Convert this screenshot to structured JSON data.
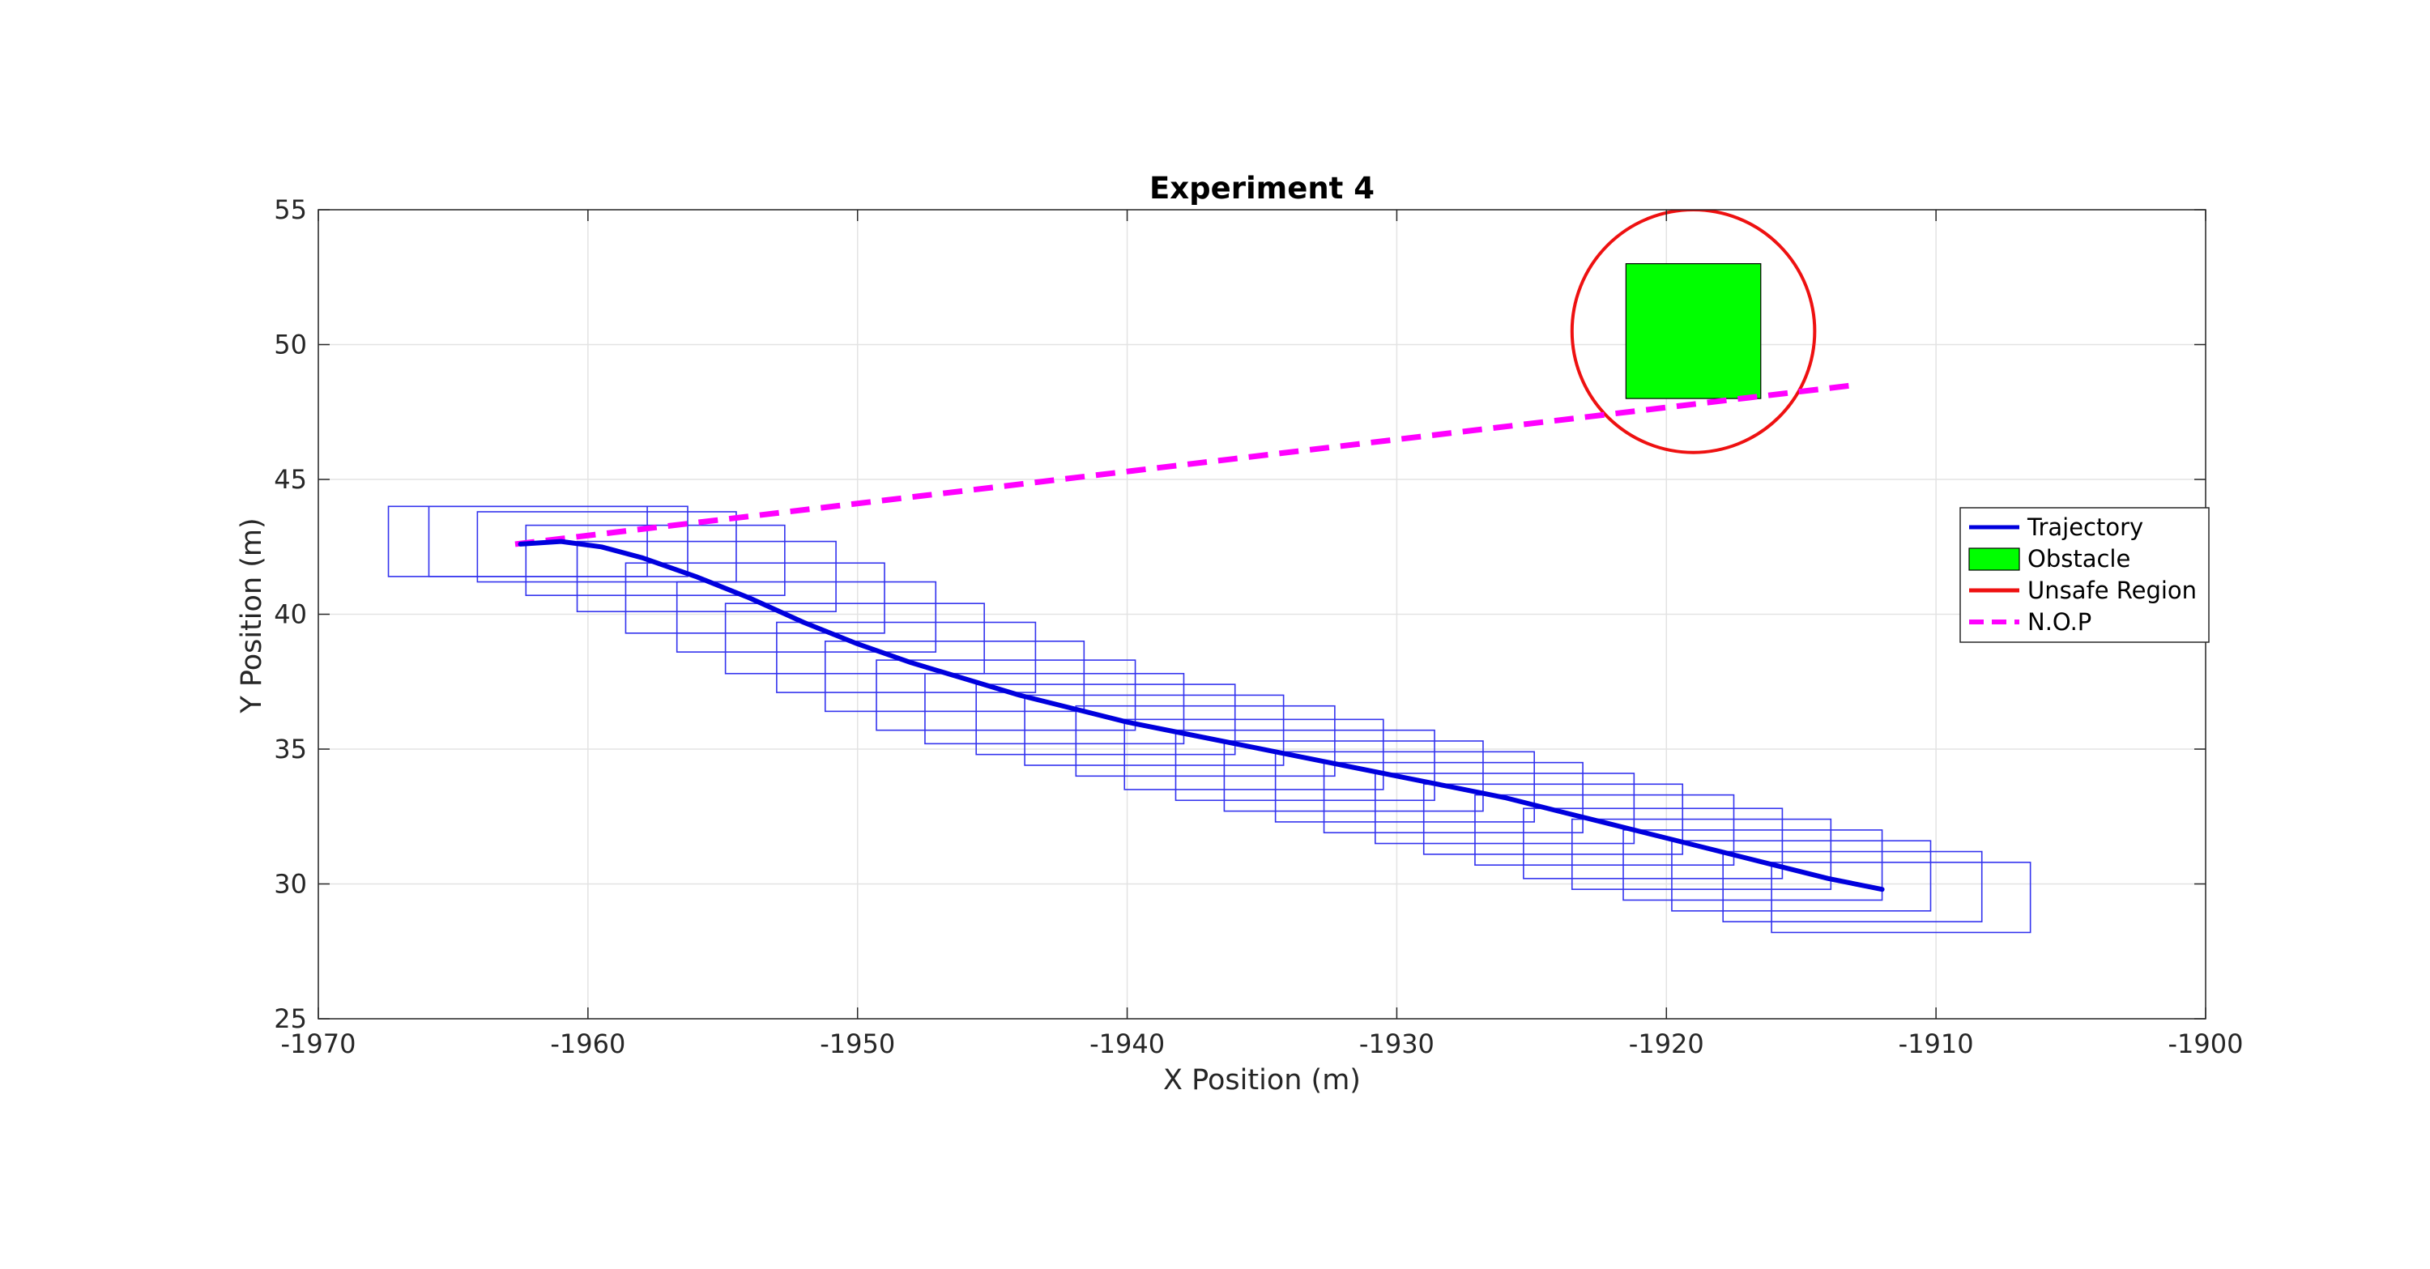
{
  "chart_data": {
    "type": "line",
    "title": "Experiment 4",
    "xlabel": "X Position (m)",
    "ylabel": "Y Position (m)",
    "xlim": [
      -1970,
      -1900
    ],
    "ylim": [
      25,
      55
    ],
    "x_ticks": [
      -1970,
      -1960,
      -1950,
      -1940,
      -1930,
      -1920,
      -1910,
      -1900
    ],
    "x_tick_labels": [
      "-1970",
      "-1960",
      "-1950",
      "-1940",
      "-1930",
      "-1920",
      "-1910",
      "-1900"
    ],
    "y_ticks": [
      25,
      30,
      35,
      40,
      45,
      50,
      55
    ],
    "y_tick_labels": [
      "25",
      "30",
      "35",
      "40",
      "45",
      "50",
      "55"
    ],
    "grid": true,
    "legend_position": "right",
    "legend": [
      {
        "label": "Trajectory",
        "kind": "line",
        "color": "#0000dd"
      },
      {
        "label": "Obstacle",
        "kind": "patch",
        "color": "#00ff00"
      },
      {
        "label": "Unsafe Region",
        "kind": "line",
        "color": "#ee1111"
      },
      {
        "label": "N.O.P",
        "kind": "dashed",
        "color": "#ff00ff"
      }
    ],
    "colors": {
      "trajectory": "#0000dd",
      "footprint": "#3333ee",
      "obstacle": "#00ff00",
      "unsafe_region": "#ee1111",
      "nop": "#ff00ff"
    },
    "trajectory": {
      "x": [
        -1962.5,
        -1961,
        -1959.5,
        -1958,
        -1956,
        -1954,
        -1952,
        -1950,
        -1948,
        -1946,
        -1944,
        -1942,
        -1940,
        -1938,
        -1936,
        -1934,
        -1932,
        -1930,
        -1928,
        -1926,
        -1924,
        -1922,
        -1920,
        -1918,
        -1916,
        -1914,
        -1912
      ],
      "y": [
        42.6,
        42.7,
        42.5,
        42.1,
        41.4,
        40.6,
        39.7,
        38.9,
        38.2,
        37.6,
        37.0,
        36.5,
        36.0,
        35.6,
        35.2,
        34.8,
        34.4,
        34.0,
        33.6,
        33.2,
        32.7,
        32.2,
        31.7,
        31.2,
        30.7,
        30.2,
        29.8
      ]
    },
    "footprints": {
      "width": 9.6,
      "height": 2.6,
      "x_left": [
        -1967.4,
        -1965.9,
        -1964.1,
        -1962.3,
        -1960.4,
        -1958.6,
        -1956.7,
        -1954.9,
        -1953.0,
        -1951.2,
        -1949.3,
        -1947.5,
        -1945.6,
        -1943.8,
        -1941.9,
        -1940.1,
        -1938.2,
        -1936.4,
        -1934.5,
        -1932.7,
        -1930.8,
        -1929.0,
        -1927.1,
        -1925.3,
        -1923.5,
        -1921.6,
        -1919.8,
        -1917.9,
        -1916.1
      ],
      "y_bottom": [
        41.4,
        41.4,
        41.2,
        40.7,
        40.1,
        39.3,
        38.6,
        37.8,
        37.1,
        36.4,
        35.7,
        35.2,
        34.8,
        34.4,
        34.0,
        33.5,
        33.1,
        32.7,
        32.3,
        31.9,
        31.5,
        31.1,
        30.7,
        30.2,
        29.8,
        29.4,
        29.0,
        28.6,
        28.2
      ]
    },
    "obstacle": {
      "x0": -1921.5,
      "y0": 48.0,
      "x1": -1916.5,
      "y1": 53.0
    },
    "unsafe_region": {
      "cx": -1919.0,
      "cy": 50.5,
      "r": 4.5
    },
    "nop": {
      "x": [
        -1962.7,
        -1913.0
      ],
      "y": [
        42.6,
        48.5
      ]
    }
  }
}
